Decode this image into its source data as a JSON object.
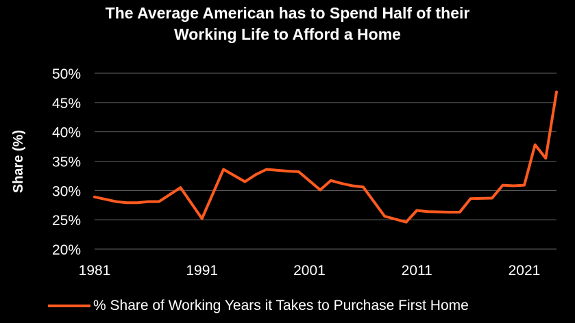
{
  "title_line1": "The Average American has to Spend Half of their",
  "title_line2": "Working Life to Afford a Home",
  "chart_data": {
    "type": "line",
    "title": "The Average American has to Spend Half of their Working Life to Afford a Home",
    "ylabel": "Share (%)",
    "xlabel": "",
    "xlim": [
      1981,
      2024
    ],
    "ylim": [
      20,
      50
    ],
    "xticks": [
      1981,
      1991,
      2001,
      2011,
      2021
    ],
    "xtick_labels": [
      "1981",
      "1991",
      "2001",
      "2011",
      "2021"
    ],
    "yticks": [
      20,
      25,
      30,
      35,
      40,
      45,
      50
    ],
    "ytick_labels": [
      "20%",
      "25%",
      "30%",
      "35%",
      "40%",
      "45%",
      "50%"
    ],
    "grid": "horizontal",
    "legend_position": "bottom",
    "line_color": "#ff5a1f",
    "series": [
      {
        "name": "% Share of Working Years it Takes to Purchase First Home",
        "x": [
          1981,
          1982,
          1983,
          1984,
          1985,
          1986,
          1987,
          1989,
          1991,
          1993,
          1995,
          1996,
          1997,
          1999,
          2000,
          2002,
          2003,
          2004,
          2005,
          2006,
          2008,
          2010,
          2011,
          2012,
          2014,
          2015,
          2016,
          2018,
          2019,
          2020,
          2021,
          2022,
          2023,
          2024
        ],
        "values": [
          28.9,
          28.5,
          28.1,
          27.9,
          27.9,
          28.1,
          28.1,
          30.5,
          25.2,
          33.6,
          31.5,
          32.7,
          33.6,
          33.3,
          33.2,
          30.1,
          31.7,
          31.2,
          30.8,
          30.6,
          25.6,
          24.6,
          26.6,
          26.4,
          26.3,
          26.3,
          28.6,
          28.7,
          30.9,
          30.8,
          30.9,
          37.8,
          35.5,
          46.8
        ]
      }
    ]
  }
}
